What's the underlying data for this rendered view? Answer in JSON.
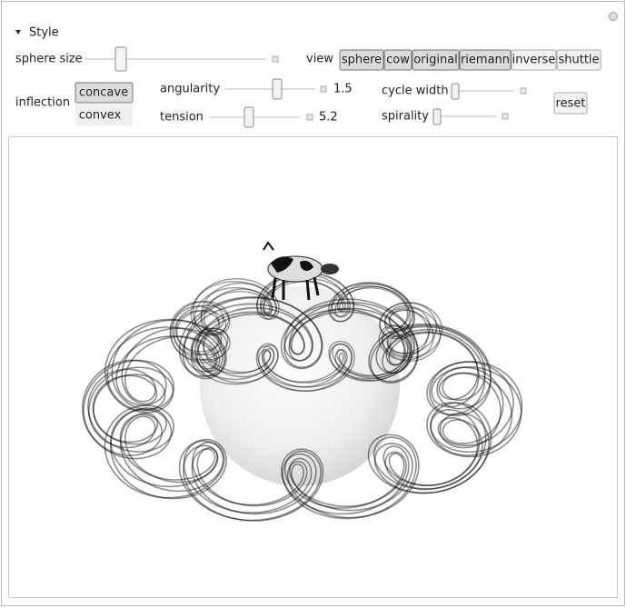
{
  "header": {
    "section": "Style"
  },
  "controls": {
    "sphere_size": {
      "label": "sphere size"
    },
    "view": {
      "label": "view",
      "options": [
        "sphere",
        "cow",
        "original",
        "riemann",
        "inverse",
        "shuttle"
      ]
    },
    "inflection": {
      "label": "inflection",
      "options": [
        "concave",
        "convex"
      ]
    },
    "angularity": {
      "label": "angularity",
      "value_text": "1.5"
    },
    "tension": {
      "label": "tension",
      "value_text": "5.2"
    },
    "cycle_width": {
      "label": "cycle width"
    },
    "spirality": {
      "label": "spirality"
    },
    "reset": "reset"
  }
}
